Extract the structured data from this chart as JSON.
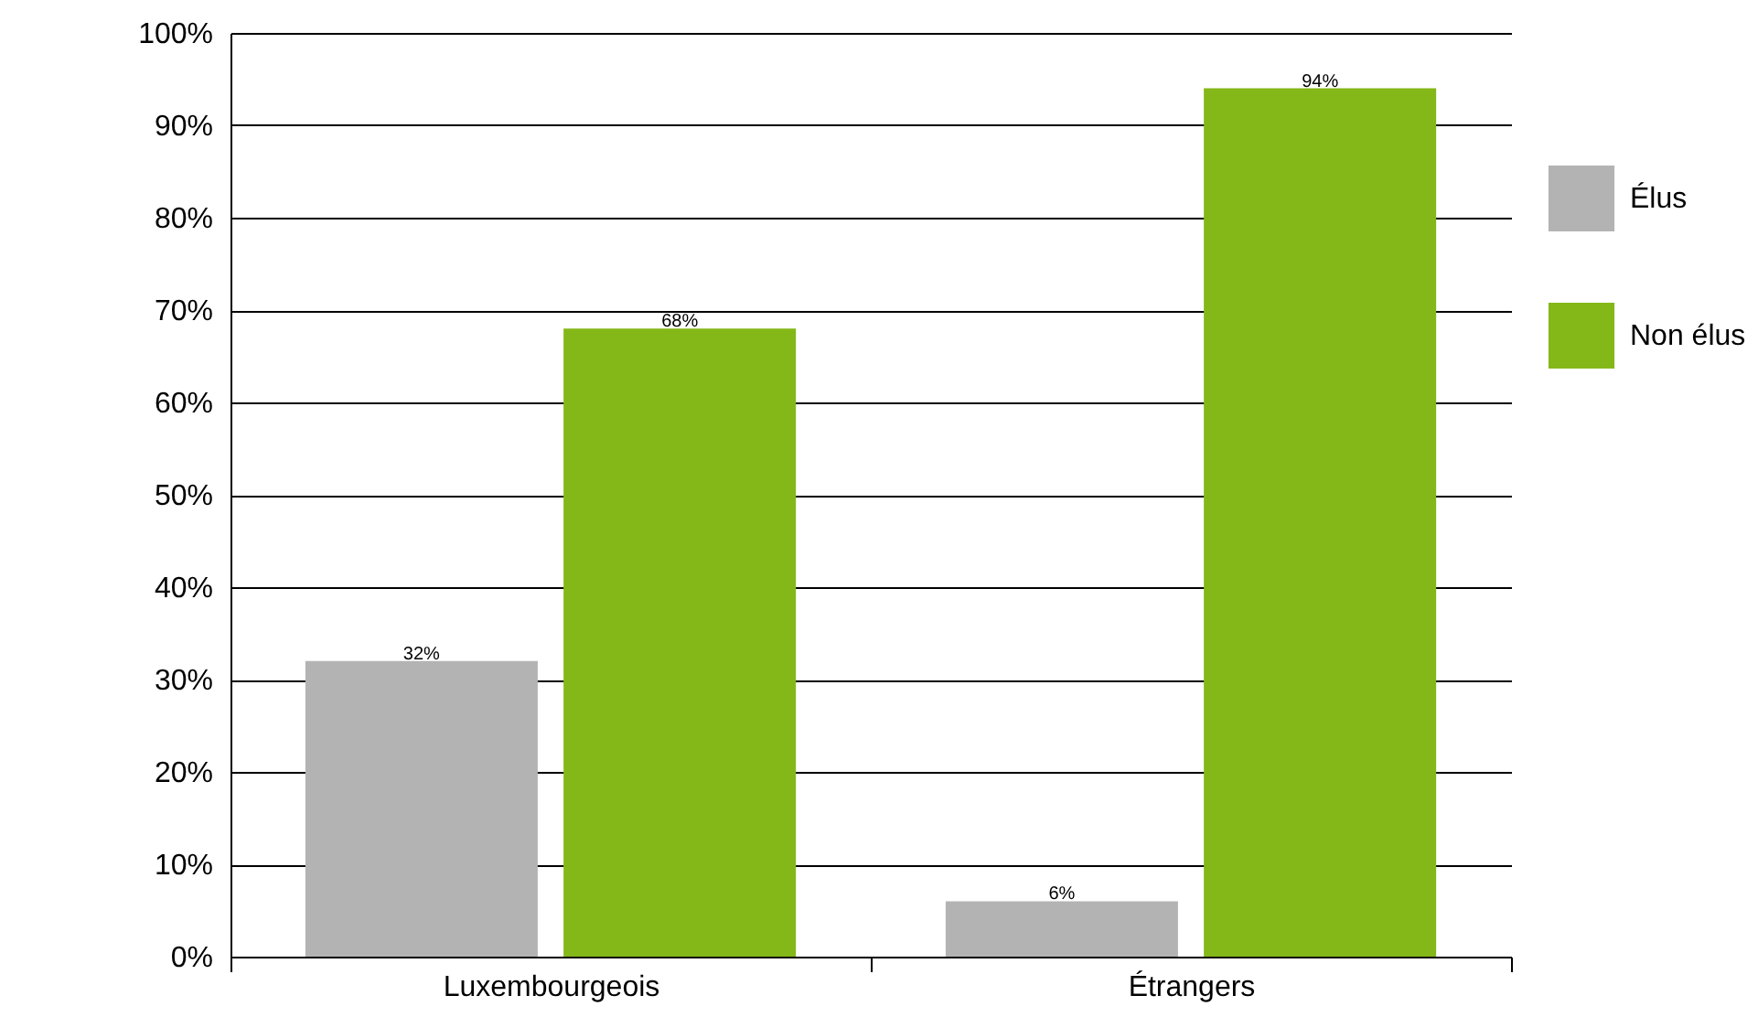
{
  "chart_data": {
    "type": "bar",
    "categories": [
      "Luxembourgeois",
      "Étrangers"
    ],
    "series": [
      {
        "name": "Élus",
        "color": "#b3b3b3",
        "values": [
          32,
          6
        ],
        "value_labels": [
          "32%",
          "6%"
        ]
      },
      {
        "name": "Non élus",
        "color": "#84b819",
        "values": [
          68,
          94
        ],
        "value_labels": [
          "68%",
          "94%"
        ]
      }
    ],
    "ylim": [
      0,
      100
    ],
    "yticks": [
      {
        "value": 0,
        "label": "0%"
      },
      {
        "value": 10,
        "label": "10%"
      },
      {
        "value": 20,
        "label": "20%"
      },
      {
        "value": 30,
        "label": "30%"
      },
      {
        "value": 40,
        "label": "40%"
      },
      {
        "value": 50,
        "label": "50%"
      },
      {
        "value": 60,
        "label": "60%"
      },
      {
        "value": 70,
        "label": "70%"
      },
      {
        "value": 80,
        "label": "80%"
      },
      {
        "value": 90,
        "label": "90%"
      },
      {
        "value": 100,
        "label": "100%"
      }
    ],
    "grid": "y",
    "legend": "right"
  }
}
